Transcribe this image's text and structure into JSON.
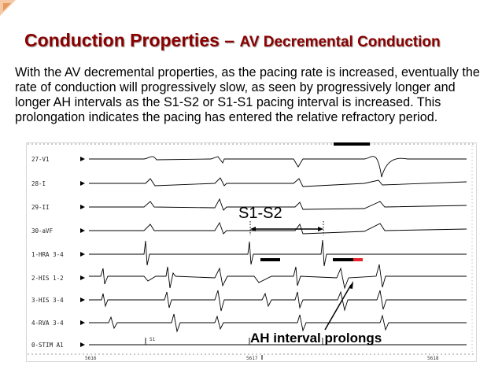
{
  "slide": {
    "title_main": "Conduction Properties – ",
    "title_sub": "AV Decremental Conduction",
    "body": "With the AV decremental properties, as the pacing rate is increased, eventually the rate of conduction will progressively slow, as seen by progressively longer and longer AH intervals as the S1-S2 or S1-S1 pacing interval is increased. This prolongation indicates the pacing has entered the relative refractory period."
  },
  "tracing": {
    "channels": [
      "27-V1",
      "28-I",
      "29-II",
      "30-aVF",
      "1-HRA 3-4",
      "2-HIS 1-2",
      "3-HIS 3-4",
      "4-RVA 3-4",
      "0-STIM A1"
    ],
    "stim_marker": "S1",
    "bottom_labels": [
      "5616",
      "5617",
      "5618"
    ],
    "annotation_interval": "S1-S2",
    "annotation_ah": "AH interval prolongs",
    "ah_bar_color": "#000000",
    "ah_prolong_color": "#e8232a"
  }
}
